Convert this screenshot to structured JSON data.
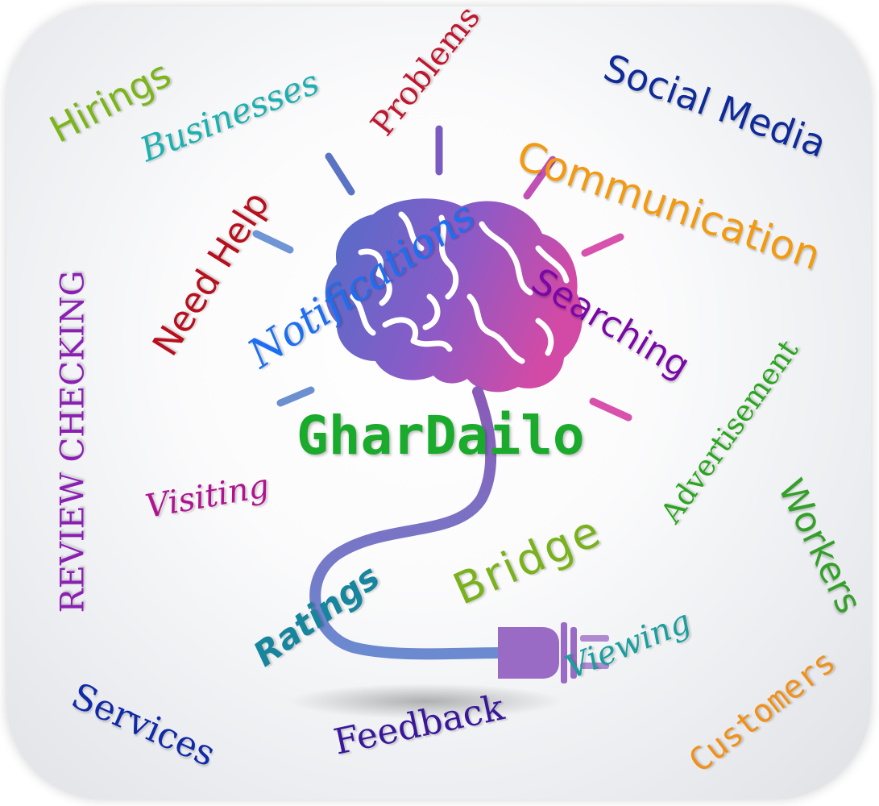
{
  "brand": "GharDailo",
  "words": {
    "hirings": "Hirings",
    "businesses": "Businesses",
    "problems": "Problems",
    "social_media": "Social Media",
    "communication": "Communication",
    "need_help": "Need Help",
    "notifications": "Notifications",
    "searching": "Searching",
    "review_checking": "REVIEW CHECKING",
    "advertisement": "Advertisement",
    "visiting": "Visiting",
    "workers": "Workers",
    "bridge": "Bridge",
    "ratings": "Ratings",
    "viewing": "Viewing",
    "services": "Services",
    "feedback": "Feedback",
    "customers": "Customers"
  },
  "illustration": "brain-lightbulb-plug-icon"
}
